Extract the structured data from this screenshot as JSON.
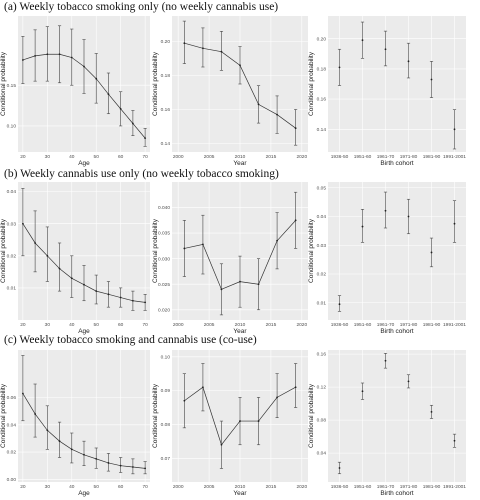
{
  "row_titles": [
    "(a) Weekly tobacco smoking only (no weekly cannabis use)",
    "(b) Weekly cannabis use only (no weekly tobacco smoking)",
    "(c) Weekly tobacco smoking and cannabis use (co-use)"
  ],
  "chart_data": [
    {
      "type": "line",
      "row": 0,
      "col": 0,
      "xlabel": "Age",
      "ylabel": "Conditional probability",
      "x": [
        20,
        25,
        30,
        35,
        40,
        45,
        50,
        55,
        60,
        65,
        70
      ],
      "y": [
        0.181,
        0.186,
        0.188,
        0.188,
        0.184,
        0.173,
        0.158,
        0.139,
        0.121,
        0.103,
        0.085
      ],
      "lo": [
        0.152,
        0.155,
        0.155,
        0.153,
        0.15,
        0.14,
        0.128,
        0.115,
        0.1,
        0.088,
        0.075
      ],
      "hi": [
        0.21,
        0.218,
        0.222,
        0.223,
        0.219,
        0.206,
        0.189,
        0.165,
        0.142,
        0.119,
        0.097
      ],
      "xlim": [
        18,
        72
      ],
      "ylim": [
        0.068,
        0.235
      ],
      "xticks": [
        20,
        30,
        40,
        50,
        60,
        70
      ],
      "yticks": [
        0.1,
        0.15
      ],
      "ytick_labels": [
        "0.10",
        "0.15"
      ]
    },
    {
      "type": "line",
      "row": 0,
      "col": 1,
      "xlabel": "Year",
      "ylabel": "Conditional probability",
      "x": [
        2001,
        2004,
        2007,
        2010,
        2013,
        2016,
        2019
      ],
      "y": [
        0.199,
        0.196,
        0.194,
        0.186,
        0.163,
        0.157,
        0.149
      ],
      "lo": [
        0.187,
        0.185,
        0.183,
        0.175,
        0.152,
        0.146,
        0.139
      ],
      "hi": [
        0.212,
        0.208,
        0.206,
        0.197,
        0.174,
        0.168,
        0.16
      ],
      "xlim": [
        1999,
        2021
      ],
      "ylim": [
        0.135,
        0.215
      ],
      "xticks": [
        2000,
        2005,
        2010,
        2015,
        2020
      ],
      "yticks": [
        0.14,
        0.16,
        0.18,
        0.2
      ],
      "ytick_labels": [
        "0.14",
        "0.16",
        "0.18",
        "0.20"
      ]
    },
    {
      "type": "scatter",
      "row": 0,
      "col": 2,
      "xlabel": "Birth cohort",
      "ylabel": "Conditional probability",
      "categories": [
        "1936-50",
        "1951-60",
        "1961-70",
        "1971-80",
        "1981-90",
        "1991-2001"
      ],
      "y": [
        0.181,
        0.199,
        0.193,
        0.185,
        0.173,
        0.14
      ],
      "lo": [
        0.169,
        0.187,
        0.182,
        0.174,
        0.161,
        0.127
      ],
      "hi": [
        0.193,
        0.211,
        0.205,
        0.197,
        0.185,
        0.153
      ],
      "ylim": [
        0.125,
        0.215
      ],
      "yticks": [
        0.14,
        0.16,
        0.18,
        0.2
      ],
      "ytick_labels": [
        "0.14",
        "0.16",
        "0.18",
        "0.20"
      ]
    },
    {
      "type": "line",
      "row": 1,
      "col": 0,
      "xlabel": "Age",
      "ylabel": "Conditional probability",
      "x": [
        20,
        25,
        30,
        35,
        40,
        45,
        50,
        55,
        60,
        65,
        70
      ],
      "y": [
        0.03,
        0.024,
        0.02,
        0.016,
        0.013,
        0.011,
        0.009,
        0.008,
        0.007,
        0.006,
        0.0055
      ],
      "lo": [
        0.02,
        0.015,
        0.012,
        0.009,
        0.007,
        0.006,
        0.005,
        0.004,
        0.004,
        0.003,
        0.003
      ],
      "hi": [
        0.041,
        0.034,
        0.029,
        0.024,
        0.02,
        0.017,
        0.014,
        0.012,
        0.01,
        0.009,
        0.008
      ],
      "xlim": [
        18,
        72
      ],
      "ylim": [
        0.0,
        0.043
      ],
      "xticks": [
        20,
        30,
        40,
        50,
        60,
        70
      ],
      "yticks": [
        0.01,
        0.02,
        0.03,
        0.04
      ],
      "ytick_labels": [
        "0.01",
        "0.02",
        "0.03",
        "0.04"
      ]
    },
    {
      "type": "line",
      "row": 1,
      "col": 1,
      "xlabel": "Year",
      "ylabel": "Conditional probability",
      "x": [
        2001,
        2004,
        2007,
        2010,
        2013,
        2016,
        2019
      ],
      "y": [
        0.032,
        0.0328,
        0.024,
        0.0255,
        0.025,
        0.0335,
        0.0375
      ],
      "lo": [
        0.0265,
        0.027,
        0.019,
        0.0205,
        0.02,
        0.028,
        0.032
      ],
      "hi": [
        0.0375,
        0.0385,
        0.029,
        0.0305,
        0.03,
        0.039,
        0.043
      ],
      "xlim": [
        1999,
        2021
      ],
      "ylim": [
        0.018,
        0.045
      ],
      "xticks": [
        2000,
        2005,
        2010,
        2015,
        2020
      ],
      "yticks": [
        0.02,
        0.025,
        0.03,
        0.035,
        0.04
      ],
      "ytick_labels": [
        "0.020",
        "0.025",
        "0.030",
        "0.035",
        "0.040"
      ]
    },
    {
      "type": "scatter",
      "row": 1,
      "col": 2,
      "xlabel": "Birth cohort",
      "ylabel": "Conditional probability",
      "categories": [
        "1936-50",
        "1951-60",
        "1961-70",
        "1971-80",
        "1981-90",
        "1991-2001"
      ],
      "y": [
        0.0095,
        0.0365,
        0.042,
        0.04,
        0.0275,
        0.0375
      ],
      "lo": [
        0.007,
        0.031,
        0.036,
        0.034,
        0.0225,
        0.031
      ],
      "hi": [
        0.0125,
        0.0425,
        0.0485,
        0.046,
        0.0325,
        0.0455
      ],
      "ylim": [
        0.004,
        0.052
      ],
      "yticks": [
        0.01,
        0.02,
        0.03,
        0.04,
        0.05
      ],
      "ytick_labels": [
        "0.01",
        "0.02",
        "0.03",
        "0.04",
        "0.05"
      ]
    },
    {
      "type": "line",
      "row": 2,
      "col": 0,
      "xlabel": "Age",
      "ylabel": "Conditional probability",
      "x": [
        20,
        25,
        30,
        35,
        40,
        45,
        50,
        55,
        60,
        65,
        70
      ],
      "y": [
        0.063,
        0.048,
        0.036,
        0.028,
        0.022,
        0.018,
        0.015,
        0.012,
        0.01,
        0.009,
        0.008
      ],
      "lo": [
        0.043,
        0.031,
        0.022,
        0.016,
        0.012,
        0.01,
        0.008,
        0.006,
        0.005,
        0.004,
        0.004
      ],
      "hi": [
        0.091,
        0.07,
        0.054,
        0.042,
        0.034,
        0.028,
        0.023,
        0.019,
        0.016,
        0.015,
        0.013
      ],
      "xlim": [
        18,
        72
      ],
      "ylim": [
        -0.002,
        0.095
      ],
      "xticks": [
        20,
        30,
        40,
        50,
        60,
        70
      ],
      "yticks": [
        0.0,
        0.02,
        0.04,
        0.06
      ],
      "ytick_labels": [
        "0.00",
        "0.02",
        "0.04",
        "0.06"
      ]
    },
    {
      "type": "line",
      "row": 2,
      "col": 1,
      "xlabel": "Year",
      "ylabel": "Conditional probability",
      "x": [
        2001,
        2004,
        2007,
        2010,
        2013,
        2016,
        2019
      ],
      "y": [
        0.087,
        0.091,
        0.074,
        0.081,
        0.081,
        0.088,
        0.091
      ],
      "lo": [
        0.079,
        0.084,
        0.067,
        0.074,
        0.074,
        0.082,
        0.085
      ],
      "hi": [
        0.095,
        0.098,
        0.081,
        0.088,
        0.088,
        0.095,
        0.098
      ],
      "xlim": [
        1999,
        2021
      ],
      "ylim": [
        0.063,
        0.102
      ],
      "xticks": [
        2000,
        2005,
        2010,
        2015,
        2020
      ],
      "yticks": [
        0.07,
        0.08,
        0.09,
        0.1
      ],
      "ytick_labels": [
        "0.07",
        "0.08",
        "0.09",
        "0.10"
      ]
    },
    {
      "type": "scatter",
      "row": 2,
      "col": 2,
      "xlabel": "Birth cohort",
      "ylabel": "Conditional probability",
      "categories": [
        "1936-50",
        "1951-60",
        "1961-70",
        "1971-80",
        "1981-90",
        "1991-2001"
      ],
      "y": [
        0.022,
        0.115,
        0.152,
        0.127,
        0.09,
        0.055
      ],
      "lo": [
        0.015,
        0.105,
        0.143,
        0.119,
        0.082,
        0.047
      ],
      "hi": [
        0.029,
        0.125,
        0.161,
        0.135,
        0.098,
        0.063
      ],
      "ylim": [
        0.005,
        0.165
      ],
      "yticks": [
        0.04,
        0.08,
        0.12,
        0.16
      ],
      "ytick_labels": [
        "0.04",
        "0.08",
        "0.12",
        "0.16"
      ]
    }
  ]
}
